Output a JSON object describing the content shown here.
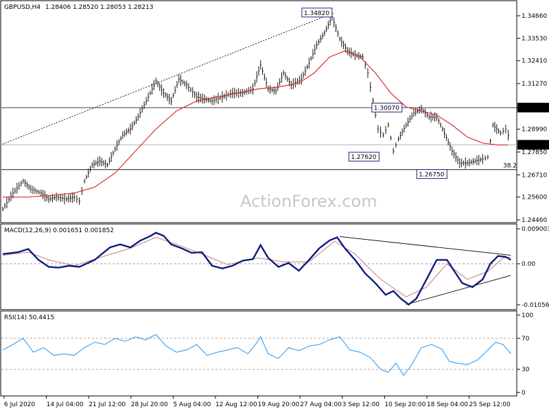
{
  "chart_data": {
    "type": "line",
    "symbol": "GBPUSD,H4",
    "ohlc": "1.28406 1.28520 1.28053 1.28213",
    "watermark": "ActionForex.com",
    "x_labels": [
      "6 Jul 2020",
      "14 Jul 04:00",
      "21 Jul 12:00",
      "28 Jul 20:00",
      "5 Aug 04:00",
      "12 Aug 12:00",
      "19 Aug 20:00",
      "27 Aug 04:00",
      "3 Sep 12:00",
      "10 Sep 20:00",
      "18 Sep 04:00",
      "25 Sep 12:00"
    ],
    "price": {
      "ylim": [
        1.2446,
        1.3466
      ],
      "y_ticks": [
        "1.34660",
        "1.33530",
        "1.32410",
        "1.31270",
        "1.30070",
        "1.28990",
        "1.27850",
        "1.26710",
        "1.25600",
        "1.24460"
      ],
      "current": "1.28213",
      "current_value": 1.28213,
      "line_30070": 1.3007,
      "line_30070_label": "1.30070",
      "fib_line": 1.2697,
      "fib_label": "38.2",
      "annotations": [
        {
          "text": "1.34820",
          "value": 1.3482,
          "x_frac": 0.645
        },
        {
          "text": "1.30070",
          "value": 1.3007,
          "x_frac": 0.782
        },
        {
          "text": "1.27620",
          "value": 1.2762,
          "x_frac": 0.737
        },
        {
          "text": "1.26750",
          "value": 1.2675,
          "x_frac": 0.87
        }
      ],
      "trendline": [
        [
          0.0,
          1.2825
        ],
        [
          0.65,
          1.3482
        ]
      ],
      "close": [
        [
          0.0,
          1.25
        ],
        [
          0.02,
          1.258
        ],
        [
          0.04,
          1.264
        ],
        [
          0.055,
          1.26
        ],
        [
          0.075,
          1.258
        ],
        [
          0.09,
          1.255
        ],
        [
          0.105,
          1.256
        ],
        [
          0.125,
          1.255
        ],
        [
          0.14,
          1.256
        ],
        [
          0.15,
          1.254
        ],
        [
          0.16,
          1.264
        ],
        [
          0.175,
          1.272
        ],
        [
          0.19,
          1.274
        ],
        [
          0.205,
          1.272
        ],
        [
          0.22,
          1.28
        ],
        [
          0.235,
          1.287
        ],
        [
          0.25,
          1.29
        ],
        [
          0.265,
          1.296
        ],
        [
          0.285,
          1.306
        ],
        [
          0.3,
          1.314
        ],
        [
          0.315,
          1.308
        ],
        [
          0.33,
          1.304
        ],
        [
          0.345,
          1.315
        ],
        [
          0.36,
          1.312
        ],
        [
          0.38,
          1.306
        ],
        [
          0.395,
          1.305
        ],
        [
          0.41,
          1.304
        ],
        [
          0.43,
          1.306
        ],
        [
          0.45,
          1.308
        ],
        [
          0.47,
          1.308
        ],
        [
          0.49,
          1.31
        ],
        [
          0.505,
          1.322
        ],
        [
          0.52,
          1.31
        ],
        [
          0.535,
          1.309
        ],
        [
          0.55,
          1.318
        ],
        [
          0.565,
          1.312
        ],
        [
          0.585,
          1.315
        ],
        [
          0.6,
          1.323
        ],
        [
          0.615,
          1.332
        ],
        [
          0.63,
          1.338
        ],
        [
          0.645,
          1.346
        ],
        [
          0.66,
          1.335
        ],
        [
          0.675,
          1.329
        ],
        [
          0.69,
          1.327
        ],
        [
          0.705,
          1.326
        ],
        [
          0.715,
          1.318
        ],
        [
          0.725,
          1.304
        ],
        [
          0.735,
          1.29
        ],
        [
          0.745,
          1.287
        ],
        [
          0.755,
          1.292
        ],
        [
          0.765,
          1.279
        ],
        [
          0.775,
          1.285
        ],
        [
          0.79,
          1.292
        ],
        [
          0.805,
          1.298
        ],
        [
          0.82,
          1.3
        ],
        [
          0.835,
          1.296
        ],
        [
          0.85,
          1.296
        ],
        [
          0.865,
          1.288
        ],
        [
          0.88,
          1.279
        ],
        [
          0.895,
          1.273
        ],
        [
          0.91,
          1.273
        ],
        [
          0.925,
          1.274
        ],
        [
          0.94,
          1.275
        ],
        [
          0.95,
          1.276
        ],
        [
          0.96,
          1.292
        ],
        [
          0.975,
          1.288
        ],
        [
          0.985,
          1.29
        ],
        [
          0.995,
          1.284
        ]
      ],
      "ma": [
        [
          0.0,
          1.256
        ],
        [
          0.05,
          1.256
        ],
        [
          0.1,
          1.257
        ],
        [
          0.14,
          1.258
        ],
        [
          0.18,
          1.261
        ],
        [
          0.22,
          1.268
        ],
        [
          0.26,
          1.279
        ],
        [
          0.3,
          1.29
        ],
        [
          0.34,
          1.299
        ],
        [
          0.38,
          1.304
        ],
        [
          0.42,
          1.306
        ],
        [
          0.46,
          1.308
        ],
        [
          0.5,
          1.31
        ],
        [
          0.54,
          1.311
        ],
        [
          0.58,
          1.313
        ],
        [
          0.61,
          1.318
        ],
        [
          0.64,
          1.326
        ],
        [
          0.67,
          1.329
        ],
        [
          0.7,
          1.326
        ],
        [
          0.73,
          1.318
        ],
        [
          0.76,
          1.308
        ],
        [
          0.79,
          1.301
        ],
        [
          0.82,
          1.299
        ],
        [
          0.85,
          1.297
        ],
        [
          0.88,
          1.292
        ],
        [
          0.91,
          1.286
        ],
        [
          0.94,
          1.283
        ],
        [
          0.97,
          1.282
        ],
        [
          0.99,
          1.282
        ]
      ]
    },
    "macd": {
      "label": "MACD(12,26,9) 0.001651 0.001852",
      "ylim": [
        -0.010566,
        0.009003
      ],
      "y_ticks": [
        "0.009003",
        "0.00",
        "-0.010566"
      ],
      "zero": 0.0,
      "main": [
        [
          0.0,
          0.0025
        ],
        [
          0.03,
          0.003
        ],
        [
          0.05,
          0.0038
        ],
        [
          0.07,
          0.001
        ],
        [
          0.09,
          -0.0008
        ],
        [
          0.11,
          -0.001
        ],
        [
          0.13,
          -0.0005
        ],
        [
          0.15,
          -0.0008
        ],
        [
          0.18,
          0.001
        ],
        [
          0.21,
          0.0042
        ],
        [
          0.23,
          0.005
        ],
        [
          0.25,
          0.0042
        ],
        [
          0.27,
          0.006
        ],
        [
          0.29,
          0.0072
        ],
        [
          0.3,
          0.008
        ],
        [
          0.315,
          0.0072
        ],
        [
          0.33,
          0.005
        ],
        [
          0.35,
          0.004
        ],
        [
          0.37,
          0.0028
        ],
        [
          0.39,
          0.003
        ],
        [
          0.41,
          -0.0005
        ],
        [
          0.43,
          -0.0012
        ],
        [
          0.45,
          -0.0005
        ],
        [
          0.47,
          0.0008
        ],
        [
          0.49,
          0.0012
        ],
        [
          0.505,
          0.0048
        ],
        [
          0.52,
          0.0015
        ],
        [
          0.54,
          -0.0008
        ],
        [
          0.56,
          0.0002
        ],
        [
          0.58,
          -0.0018
        ],
        [
          0.6,
          0.001
        ],
        [
          0.62,
          0.004
        ],
        [
          0.64,
          0.006
        ],
        [
          0.655,
          0.0068
        ],
        [
          0.67,
          0.004
        ],
        [
          0.69,
          0.001
        ],
        [
          0.71,
          -0.0025
        ],
        [
          0.73,
          -0.005
        ],
        [
          0.75,
          -0.008
        ],
        [
          0.765,
          -0.007
        ],
        [
          0.78,
          -0.009
        ],
        [
          0.795,
          -0.0105
        ],
        [
          0.81,
          -0.009
        ],
        [
          0.83,
          -0.004
        ],
        [
          0.85,
          0.001
        ],
        [
          0.87,
          0.001
        ],
        [
          0.885,
          -0.002
        ],
        [
          0.9,
          -0.005
        ],
        [
          0.92,
          -0.006
        ],
        [
          0.94,
          -0.004
        ],
        [
          0.955,
          0.0
        ],
        [
          0.97,
          0.002
        ],
        [
          0.985,
          0.0018
        ],
        [
          0.995,
          0.001
        ]
      ],
      "signal": [
        [
          0.0,
          0.0022
        ],
        [
          0.05,
          0.003
        ],
        [
          0.09,
          0.001
        ],
        [
          0.14,
          -0.0005
        ],
        [
          0.2,
          0.002
        ],
        [
          0.25,
          0.004
        ],
        [
          0.3,
          0.0068
        ],
        [
          0.34,
          0.005
        ],
        [
          0.39,
          0.0025
        ],
        [
          0.44,
          -0.0002
        ],
        [
          0.5,
          0.0015
        ],
        [
          0.55,
          0.0005
        ],
        [
          0.6,
          0.0005
        ],
        [
          0.65,
          0.0058
        ],
        [
          0.69,
          0.0025
        ],
        [
          0.74,
          -0.004
        ],
        [
          0.79,
          -0.0085
        ],
        [
          0.83,
          -0.006
        ],
        [
          0.87,
          0.0
        ],
        [
          0.91,
          -0.004
        ],
        [
          0.95,
          -0.002
        ],
        [
          0.98,
          0.0015
        ],
        [
          0.995,
          0.0017
        ]
      ],
      "trendlines": [
        [
          [
            0.66,
            0.007
          ],
          [
            0.995,
            0.0022
          ]
        ],
        [
          [
            0.79,
            -0.0105
          ],
          [
            0.995,
            -0.003
          ]
        ]
      ]
    },
    "rsi": {
      "label": "RSI(14) 50.4415",
      "ylim": [
        0,
        100
      ],
      "y_ticks": [
        "100",
        "70",
        "30",
        "0"
      ],
      "levels": [
        70,
        30
      ],
      "values": [
        [
          0.0,
          55
        ],
        [
          0.02,
          62
        ],
        [
          0.04,
          70
        ],
        [
          0.06,
          52
        ],
        [
          0.08,
          58
        ],
        [
          0.1,
          48
        ],
        [
          0.12,
          50
        ],
        [
          0.14,
          48
        ],
        [
          0.16,
          58
        ],
        [
          0.18,
          65
        ],
        [
          0.2,
          62
        ],
        [
          0.22,
          70
        ],
        [
          0.24,
          66
        ],
        [
          0.26,
          72
        ],
        [
          0.28,
          68
        ],
        [
          0.3,
          75
        ],
        [
          0.32,
          60
        ],
        [
          0.34,
          52
        ],
        [
          0.36,
          55
        ],
        [
          0.38,
          62
        ],
        [
          0.4,
          48
        ],
        [
          0.42,
          52
        ],
        [
          0.44,
          55
        ],
        [
          0.46,
          58
        ],
        [
          0.48,
          50
        ],
        [
          0.495,
          62
        ],
        [
          0.505,
          72
        ],
        [
          0.52,
          50
        ],
        [
          0.54,
          44
        ],
        [
          0.56,
          58
        ],
        [
          0.58,
          54
        ],
        [
          0.6,
          60
        ],
        [
          0.62,
          62
        ],
        [
          0.64,
          68
        ],
        [
          0.66,
          72
        ],
        [
          0.68,
          55
        ],
        [
          0.7,
          52
        ],
        [
          0.72,
          45
        ],
        [
          0.74,
          30
        ],
        [
          0.755,
          26
        ],
        [
          0.77,
          38
        ],
        [
          0.785,
          22
        ],
        [
          0.8,
          35
        ],
        [
          0.82,
          58
        ],
        [
          0.84,
          62
        ],
        [
          0.86,
          56
        ],
        [
          0.875,
          40
        ],
        [
          0.89,
          38
        ],
        [
          0.91,
          36
        ],
        [
          0.93,
          42
        ],
        [
          0.95,
          55
        ],
        [
          0.965,
          65
        ],
        [
          0.98,
          62
        ],
        [
          0.995,
          50
        ]
      ]
    }
  }
}
